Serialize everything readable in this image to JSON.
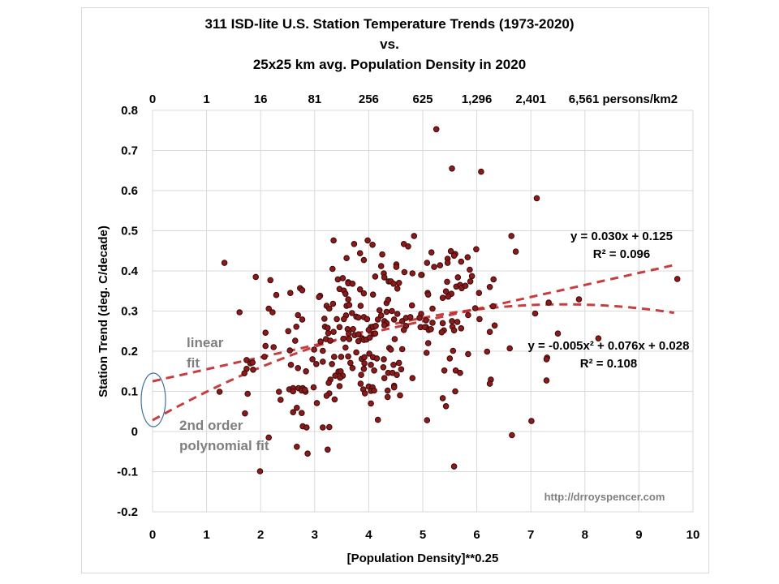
{
  "chart_data": {
    "type": "scatter",
    "title": [
      "311 ISD-lite U.S. Station Temperature Trends (1973-2020)",
      "vs.",
      "25x25 km avg. Population Density in 2020"
    ],
    "xlabel": "[Population Density]**0.25",
    "ylabel": "Station Trend (deg. C/decade)",
    "xlim": [
      0,
      10
    ],
    "ylim": [
      -0.2,
      0.8
    ],
    "xticks": [
      "0",
      "1",
      "2",
      "3",
      "4",
      "5",
      "6",
      "7",
      "8",
      "9",
      "10"
    ],
    "yticks": [
      "0.8",
      "0.7",
      "0.6",
      "0.5",
      "0.4",
      "0.3",
      "0.2",
      "0.1",
      "0",
      "-0.1",
      "-0.2"
    ],
    "secondary_xticks": [
      "0",
      "1",
      "16",
      "81",
      "256",
      "625",
      "1,296",
      "2,401",
      "6,561 persons/km2"
    ],
    "grid": true,
    "annotations": {
      "linear_eq": "y = 0.030x + 0.125",
      "linear_r2": "R² = 0.096",
      "poly_eq": "y = -0.005x² + 0.076x + 0.028",
      "poly_r2": "R² = 0.108",
      "linear_label": [
        "linear",
        "fit"
      ],
      "poly_label": [
        "2nd order",
        "polynomial fit"
      ],
      "watermark": "http://drroyspencer.com"
    },
    "fits": {
      "linear": {
        "a": 0,
        "b": 0.03,
        "c": 0.125,
        "x_range": [
          0,
          9.65
        ]
      },
      "polynomial": {
        "a": -0.005,
        "b": 0.076,
        "c": 0.028,
        "x_range": [
          0,
          9.65
        ]
      }
    },
    "colors": {
      "points": "#8b1a1a",
      "fit": "#c0292b",
      "ellipse": "#41719c"
    },
    "points": [
      [
        1.33,
        0.42
      ],
      [
        1.91,
        0.385
      ],
      [
        2.18,
        0.377
      ],
      [
        2.29,
        0.34
      ],
      [
        2.55,
        0.345
      ],
      [
        2.73,
        0.357
      ],
      [
        2.77,
        0.352
      ],
      [
        1.61,
        0.297
      ],
      [
        2.15,
        0.306
      ],
      [
        2.22,
        0.297
      ],
      [
        2.69,
        0.29
      ],
      [
        2.77,
        0.279
      ],
      [
        2.66,
        0.261
      ],
      [
        2.51,
        0.25
      ],
      [
        2.09,
        0.246
      ],
      [
        2.64,
        0.226
      ],
      [
        2.09,
        0.213
      ],
      [
        2.24,
        0.21
      ],
      [
        2.54,
        0.202
      ],
      [
        2.07,
        0.186
      ],
      [
        1.74,
        0.178
      ],
      [
        1.81,
        0.17
      ],
      [
        1.85,
        0.172
      ],
      [
        1.74,
        0.156
      ],
      [
        1.86,
        0.154
      ],
      [
        1.7,
        0.145
      ],
      [
        2.56,
        0.166
      ],
      [
        2.69,
        0.158
      ],
      [
        2.84,
        0.15
      ],
      [
        1.24,
        0.099
      ],
      [
        1.76,
        0.094
      ],
      [
        2.34,
        0.099
      ],
      [
        2.37,
        0.079
      ],
      [
        2.53,
        0.105
      ],
      [
        2.6,
        0.108
      ],
      [
        2.6,
        0.1
      ],
      [
        2.7,
        0.108
      ],
      [
        2.78,
        0.108
      ],
      [
        2.76,
        0.102
      ],
      [
        2.83,
        0.099
      ],
      [
        2.82,
        0.104
      ],
      [
        1.71,
        0.045
      ],
      [
        2.67,
        0.059
      ],
      [
        2.6,
        0.048
      ],
      [
        2.76,
        0.046
      ],
      [
        2.78,
        0.013
      ],
      [
        2.85,
        0.01
      ],
      [
        2.15,
        -0.015
      ],
      [
        2.67,
        -0.038
      ],
      [
        2.87,
        -0.055
      ],
      [
        1.99,
        -0.099
      ],
      [
        5.25,
        0.753
      ],
      [
        5.54,
        0.655
      ],
      [
        6.08,
        0.647
      ],
      [
        7.11,
        0.581
      ],
      [
        6.64,
        0.487
      ],
      [
        6.72,
        0.448
      ],
      [
        5.16,
        0.446
      ],
      [
        5.52,
        0.449
      ],
      [
        5.6,
        0.442
      ],
      [
        5.58,
        0.438
      ],
      [
        5.99,
        0.454
      ],
      [
        5.46,
        0.43
      ],
      [
        5.46,
        0.42
      ],
      [
        5.08,
        0.42
      ],
      [
        5.21,
        0.41
      ],
      [
        5.32,
        0.414
      ],
      [
        5.71,
        0.423
      ],
      [
        5.83,
        0.434
      ],
      [
        5.87,
        0.403
      ],
      [
        5.91,
        0.387
      ],
      [
        5.65,
        0.384
      ],
      [
        6.31,
        0.379
      ],
      [
        5.45,
        0.373
      ],
      [
        5.62,
        0.361
      ],
      [
        5.69,
        0.365
      ],
      [
        5.72,
        0.357
      ],
      [
        5.79,
        0.363
      ],
      [
        5.88,
        0.374
      ],
      [
        6.24,
        0.36
      ],
      [
        6.04,
        0.345
      ],
      [
        5.43,
        0.349
      ],
      [
        5.53,
        0.343
      ],
      [
        5.47,
        0.336
      ],
      [
        5.37,
        0.333
      ],
      [
        5.09,
        0.345
      ],
      [
        5.1,
        0.341
      ],
      [
        4.98,
        0.39
      ],
      [
        5.18,
        0.306
      ],
      [
        5.97,
        0.307
      ],
      [
        6.3,
        0.312
      ],
      [
        7.08,
        0.294
      ],
      [
        5.84,
        0.29
      ],
      [
        6.05,
        0.28
      ],
      [
        5.18,
        0.271
      ],
      [
        5.37,
        0.27
      ],
      [
        5.54,
        0.275
      ],
      [
        5.64,
        0.273
      ],
      [
        6.33,
        0.264
      ],
      [
        6.24,
        0.248
      ],
      [
        5.06,
        0.26
      ],
      [
        5.11,
        0.253
      ],
      [
        5.15,
        0.255
      ],
      [
        5.55,
        0.261
      ],
      [
        5.58,
        0.252
      ],
      [
        5.71,
        0.257
      ],
      [
        5.39,
        0.252
      ],
      [
        5.35,
        0.247
      ],
      [
        5.1,
        0.22
      ],
      [
        9.71,
        0.38
      ],
      [
        7.89,
        0.329
      ],
      [
        7.33,
        0.321
      ],
      [
        7.5,
        0.244
      ],
      [
        8.25,
        0.232
      ],
      [
        6.61,
        0.207
      ],
      [
        6.19,
        0.199
      ],
      [
        7.3,
        0.184
      ],
      [
        7.29,
        0.18
      ],
      [
        6.26,
        0.129
      ],
      [
        6.24,
        0.119
      ],
      [
        7.29,
        0.127
      ],
      [
        7.01,
        0.026
      ],
      [
        6.65,
        -0.009
      ],
      [
        2.99,
        0.204
      ],
      [
        3.15,
        0.201
      ],
      [
        3.57,
        0.209
      ],
      [
        3.77,
        0.197
      ],
      [
        4.38,
        0.208
      ],
      [
        4.41,
        0.204
      ],
      [
        4.62,
        0.205
      ],
      [
        5.07,
        0.196
      ],
      [
        5.56,
        0.201
      ],
      [
        5.5,
        0.182
      ],
      [
        5.84,
        0.193
      ],
      [
        2.96,
        0.18
      ],
      [
        3.03,
        0.168
      ],
      [
        3.15,
        0.174
      ],
      [
        3.36,
        0.186
      ],
      [
        3.49,
        0.186
      ],
      [
        3.62,
        0.187
      ],
      [
        3.32,
        0.168
      ],
      [
        3.66,
        0.171
      ],
      [
        3.7,
        0.158
      ],
      [
        3.87,
        0.181
      ],
      [
        3.92,
        0.185
      ],
      [
        4.01,
        0.194
      ],
      [
        4.08,
        0.185
      ],
      [
        4.15,
        0.182
      ],
      [
        4.28,
        0.18
      ],
      [
        3.92,
        0.17
      ],
      [
        4.04,
        0.166
      ],
      [
        3.91,
        0.156
      ],
      [
        4.1,
        0.152
      ],
      [
        4.27,
        0.16
      ],
      [
        4.46,
        0.166
      ],
      [
        4.56,
        0.171
      ],
      [
        4.6,
        0.155
      ],
      [
        4.36,
        0.146
      ],
      [
        4.44,
        0.146
      ],
      [
        4.52,
        0.141
      ],
      [
        4.81,
        0.133
      ],
      [
        5.4,
        0.152
      ],
      [
        5.61,
        0.152
      ],
      [
        5.69,
        0.146
      ],
      [
        3.44,
        0.149
      ],
      [
        3.48,
        0.15
      ],
      [
        3.38,
        0.139
      ],
      [
        3.52,
        0.139
      ],
      [
        3.47,
        0.134
      ],
      [
        3.29,
        0.129
      ],
      [
        3.26,
        0.121
      ],
      [
        3.86,
        0.141
      ],
      [
        4.29,
        0.133
      ],
      [
        3.85,
        0.119
      ],
      [
        3.46,
        0.113
      ],
      [
        2.98,
        0.11
      ],
      [
        4.0,
        0.112
      ],
      [
        4.07,
        0.11
      ],
      [
        4.04,
        0.101
      ],
      [
        4.1,
        0.102
      ],
      [
        3.9,
        0.105
      ],
      [
        3.93,
        0.095
      ],
      [
        4.47,
        0.114
      ],
      [
        4.47,
        0.11
      ],
      [
        4.35,
        0.102
      ],
      [
        5.6,
        0.1
      ],
      [
        3.27,
        0.095
      ],
      [
        3.22,
        0.089
      ],
      [
        3.37,
        0.08
      ],
      [
        4.35,
        0.086
      ],
      [
        4.58,
        0.09
      ],
      [
        5.37,
        0.083
      ],
      [
        5.43,
        0.063
      ],
      [
        3.04,
        0.071
      ],
      [
        4.04,
        0.07
      ],
      [
        4.17,
        0.029
      ],
      [
        5.08,
        0.028
      ],
      [
        3.15,
        0.01
      ],
      [
        3.27,
        0.011
      ],
      [
        3.24,
        -0.045
      ],
      [
        5.58,
        -0.087
      ],
      [
        3.35,
        0.476
      ],
      [
        3.73,
        0.467
      ],
      [
        3.98,
        0.476
      ],
      [
        4.07,
        0.465
      ],
      [
        4.84,
        0.487
      ],
      [
        4.65,
        0.467
      ],
      [
        4.73,
        0.461
      ],
      [
        3.84,
        0.444
      ],
      [
        3.91,
        0.427
      ],
      [
        3.59,
        0.432
      ],
      [
        4.25,
        0.441
      ],
      [
        3.33,
        0.405
      ],
      [
        4.23,
        0.412
      ],
      [
        4.51,
        0.416
      ],
      [
        4.51,
        0.41
      ],
      [
        4.66,
        0.397
      ],
      [
        4.81,
        0.394
      ],
      [
        4.97,
        0.39
      ],
      [
        4.28,
        0.394
      ],
      [
        4.12,
        0.386
      ],
      [
        4.29,
        0.384
      ],
      [
        3.43,
        0.379
      ],
      [
        3.52,
        0.382
      ],
      [
        3.62,
        0.372
      ],
      [
        3.62,
        0.369
      ],
      [
        3.7,
        0.368
      ],
      [
        4.37,
        0.374
      ],
      [
        4.41,
        0.374
      ],
      [
        4.46,
        0.368
      ],
      [
        4.56,
        0.37
      ],
      [
        4.53,
        0.356
      ],
      [
        3.46,
        0.355
      ],
      [
        3.54,
        0.351
      ],
      [
        3.57,
        0.343
      ],
      [
        3.62,
        0.329
      ],
      [
        3.84,
        0.354
      ],
      [
        3.91,
        0.344
      ],
      [
        4.08,
        0.341
      ],
      [
        3.1,
        0.338
      ],
      [
        3.08,
        0.335
      ],
      [
        3.22,
        0.313
      ],
      [
        3.27,
        0.306
      ],
      [
        3.34,
        0.318
      ],
      [
        3.59,
        0.313
      ],
      [
        3.64,
        0.315
      ],
      [
        3.85,
        0.313
      ],
      [
        4.33,
        0.32
      ],
      [
        4.36,
        0.328
      ],
      [
        4.8,
        0.314
      ],
      [
        4.2,
        0.302
      ],
      [
        4.33,
        0.298
      ],
      [
        4.43,
        0.3
      ],
      [
        4.53,
        0.293
      ],
      [
        3.69,
        0.295
      ],
      [
        3.77,
        0.286
      ],
      [
        3.81,
        0.284
      ],
      [
        3.91,
        0.285
      ],
      [
        3.97,
        0.28
      ],
      [
        3.58,
        0.289
      ],
      [
        3.54,
        0.28
      ],
      [
        3.41,
        0.28
      ],
      [
        3.18,
        0.281
      ],
      [
        4.23,
        0.289
      ],
      [
        4.17,
        0.279
      ],
      [
        4.29,
        0.275
      ],
      [
        4.33,
        0.27
      ],
      [
        4.47,
        0.279
      ],
      [
        4.62,
        0.275
      ],
      [
        4.69,
        0.283
      ],
      [
        4.77,
        0.285
      ],
      [
        4.97,
        0.293
      ],
      [
        4.94,
        0.283
      ],
      [
        5.06,
        0.277
      ],
      [
        3.19,
        0.261
      ],
      [
        3.24,
        0.258
      ],
      [
        3.46,
        0.26
      ],
      [
        3.61,
        0.255
      ],
      [
        3.71,
        0.255
      ],
      [
        4.04,
        0.26
      ],
      [
        4.08,
        0.261
      ],
      [
        4.13,
        0.263
      ],
      [
        4.29,
        0.265
      ],
      [
        4.69,
        0.263
      ],
      [
        4.65,
        0.253
      ],
      [
        4.96,
        0.26
      ],
      [
        5.04,
        0.26
      ],
      [
        3.25,
        0.245
      ],
      [
        3.35,
        0.248
      ],
      [
        3.63,
        0.244
      ],
      [
        3.74,
        0.24
      ],
      [
        3.81,
        0.242
      ],
      [
        4.0,
        0.253
      ],
      [
        4.09,
        0.243
      ],
      [
        4.12,
        0.244
      ],
      [
        3.11,
        0.224
      ],
      [
        3.21,
        0.23
      ],
      [
        3.29,
        0.226
      ],
      [
        3.53,
        0.231
      ],
      [
        3.64,
        0.23
      ],
      [
        3.81,
        0.225
      ],
      [
        3.88,
        0.232
      ],
      [
        3.91,
        0.228
      ],
      [
        3.96,
        0.229
      ],
      [
        4.02,
        0.234
      ],
      [
        4.48,
        0.23
      ]
    ]
  }
}
